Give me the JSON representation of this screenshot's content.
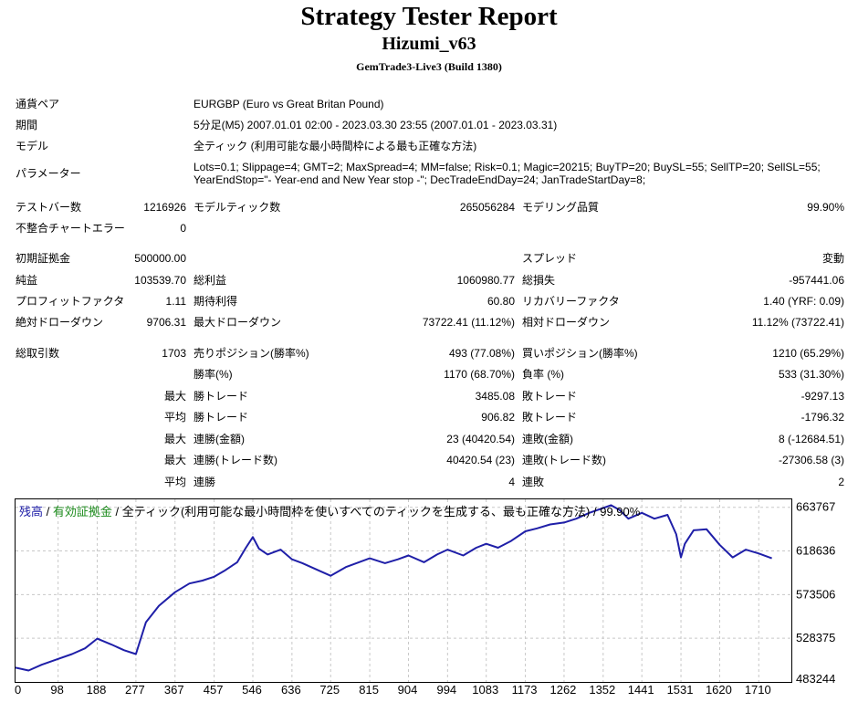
{
  "header": {
    "title": "Strategy Tester Report",
    "expert": "Hizumi_v63",
    "server": "GemTrade3-Live3 (Build 1380)"
  },
  "settings": {
    "symbol_label": "通貨ペア",
    "symbol_value": "EURGBP (Euro vs Great Britan Pound)",
    "period_label": "期間",
    "period_value": "5分足(M5) 2007.01.01 02:00 - 2023.03.30 23:55 (2007.01.01 - 2023.03.31)",
    "model_label": "モデル",
    "model_value": "全ティック (利用可能な最小時間枠による最も正確な方法)",
    "params_label": "パラメーター",
    "params_line1": "Lots=0.1; Slippage=4; GMT=2; MaxSpread=4; MM=false; Risk=0.1; Magic=20215; BuyTP=20; BuySL=55; SellTP=20; SellSL=55;",
    "params_line2": "YearEndStop=\"- Year-end and New Year stop -\"; DecTradeEndDay=24; JanTradeStartDay=8;"
  },
  "stats": {
    "bars_label": "テストバー数",
    "bars_value": "1216926",
    "ticks_label": "モデルティック数",
    "ticks_value": "265056284",
    "quality_label": "モデリング品質",
    "quality_value": "99.90%",
    "mismatch_label": "不整合チャートエラー",
    "mismatch_value": "0",
    "deposit_label": "初期証拠金",
    "deposit_value": "500000.00",
    "spread_label": "スプレッド",
    "spread_value": "変動",
    "net_label": "純益",
    "net_value": "103539.70",
    "gross_profit_label": "総利益",
    "gross_profit_value": "1060980.77",
    "gross_loss_label": "総損失",
    "gross_loss_value": "-957441.06",
    "pf_label": "プロフィットファクタ",
    "pf_value": "1.11",
    "payoff_label": "期待利得",
    "payoff_value": "60.80",
    "rf_label": "リカバリーファクタ",
    "rf_value": "1.40 (YRF: 0.09)",
    "abs_dd_label": "絶対ドローダウン",
    "abs_dd_value": "9706.31",
    "max_dd_label": "最大ドローダウン",
    "max_dd_value": "73722.41 (11.12%)",
    "rel_dd_label": "相対ドローダウン",
    "rel_dd_value": "11.12% (73722.41)",
    "trades_label": "総取引数",
    "trades_value": "1703",
    "short_label": "売りポジション(勝率%)",
    "short_value": "493 (77.08%)",
    "long_label": "買いポジション(勝率%)",
    "long_value": "1210 (65.29%)",
    "win_rate_label": "勝率(%)",
    "win_rate_value": "1170 (68.70%)",
    "loss_rate_label": "負率 (%)",
    "loss_rate_value": "533 (31.30%)",
    "max_label": "最大",
    "avg_label": "平均",
    "largest_win_label": "勝トレード",
    "largest_win_value": "3485.08",
    "largest_loss_label": "敗トレード",
    "largest_loss_value": "-9297.13",
    "avg_win_label": "勝トレード",
    "avg_win_value": "906.82",
    "avg_loss_label": "敗トレード",
    "avg_loss_value": "-1796.32",
    "max_consec_wins_label": "連勝(金額)",
    "max_consec_wins_value": "23 (40420.54)",
    "max_consec_losses_label": "連敗(金額)",
    "max_consec_losses_value": "8 (-12684.51)",
    "max_consec_profit_label": "連勝(トレード数)",
    "max_consec_profit_value": "40420.54 (23)",
    "max_consec_loss_label": "連敗(トレード数)",
    "max_consec_loss_value": "-27306.58 (3)",
    "avg_consec_wins_label": "連勝",
    "avg_consec_wins_value": "4",
    "avg_consec_losses_label": "連敗",
    "avg_consec_losses_value": "2"
  },
  "chart_legend": {
    "balance": "残高",
    "sep1": " / ",
    "equity": "有効証拠金",
    "sep2": " / ",
    "rest": "全ティック(利用可能な最小時間枠を使いすべてのティックを生成する、最も正確な方法) / 99.90%"
  },
  "chart_data": {
    "type": "line",
    "series": [
      {
        "name": "残高",
        "x": [
          0,
          30,
          60,
          98,
          130,
          160,
          188,
          220,
          250,
          277,
          300,
          330,
          367,
          400,
          430,
          457,
          480,
          510,
          530,
          546,
          560,
          580,
          610,
          636,
          660,
          700,
          725,
          760,
          790,
          815,
          850,
          880,
          904,
          940,
          970,
          994,
          1030,
          1060,
          1083,
          1110,
          1140,
          1173,
          1200,
          1230,
          1262,
          1290,
          1320,
          1352,
          1370,
          1390,
          1410,
          1441,
          1470,
          1500,
          1520,
          1531,
          1540,
          1560,
          1590,
          1620,
          1650,
          1680,
          1710,
          1740
        ],
        "y": [
          498000,
          495000,
          501000,
          507000,
          512000,
          518000,
          528000,
          522000,
          516000,
          512000,
          545000,
          562000,
          576000,
          585000,
          588000,
          592000,
          598000,
          607000,
          622000,
          633000,
          621000,
          615000,
          620000,
          610000,
          606000,
          598000,
          593000,
          602000,
          607000,
          611000,
          606000,
          610000,
          614000,
          607000,
          615000,
          620000,
          614000,
          622000,
          626000,
          622000,
          629000,
          639000,
          642000,
          646000,
          648000,
          652000,
          658000,
          663000,
          666000,
          661000,
          652000,
          658000,
          652000,
          656000,
          636000,
          612000,
          626000,
          640000,
          641000,
          625000,
          612000,
          620000,
          616000,
          611000
        ]
      }
    ],
    "x_ticks": [
      "0",
      "98",
      "188",
      "277",
      "367",
      "457",
      "546",
      "636",
      "725",
      "815",
      "904",
      "994",
      "1083",
      "1173",
      "1262",
      "1352",
      "1441",
      "1531",
      "1620",
      "1710"
    ],
    "y_ticks": [
      "663767",
      "618636",
      "573506",
      "528375",
      "483244"
    ],
    "xlim": [
      0,
      1785
    ],
    "ylim": [
      483244,
      672000
    ],
    "line_color": "#1f1fa8",
    "grid": true
  }
}
